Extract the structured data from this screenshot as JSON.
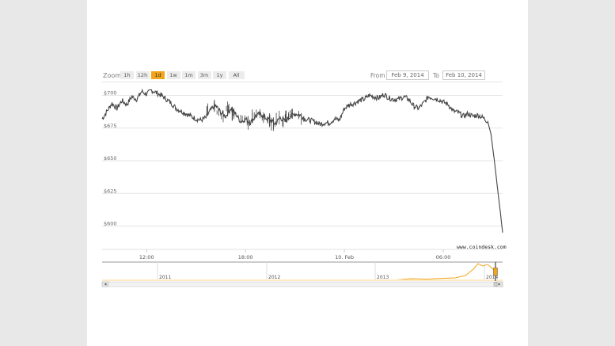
{
  "zoom": {
    "label": "Zoom",
    "buttons": [
      "1h",
      "12h",
      "1d",
      "1w",
      "1m",
      "3m",
      "1y",
      "All"
    ],
    "active": "1d",
    "active_color": "#f2a51a"
  },
  "range": {
    "from_label": "From",
    "from_value": "Feb 9, 2014",
    "to_label": "To",
    "to_value": "Feb 10, 2014"
  },
  "credit": "www.coindesk.com",
  "chart_data": {
    "type": "line",
    "title": "",
    "xlabel": "",
    "ylabel": "",
    "y_ticks": [
      "$700",
      "$675",
      "$650",
      "$625",
      "$600"
    ],
    "y_tick_values": [
      700,
      675,
      650,
      625,
      600
    ],
    "ylim": [
      590,
      710
    ],
    "x_ticks": [
      "12:00",
      "18:00",
      "10. Feb",
      "06:00"
    ],
    "x_tick_hours": [
      12,
      18,
      24,
      30
    ],
    "xlim_hours": [
      9.3,
      33.6
    ],
    "grid": true,
    "line_color": "#444444",
    "series": [
      {
        "x_hours": [
          9.3,
          9.6,
          9.9,
          10.2,
          10.5,
          10.8,
          11.1,
          11.4,
          11.7,
          12.0,
          12.3,
          12.6,
          12.9,
          13.2,
          13.5,
          13.8,
          14.1,
          14.4,
          14.7,
          15.0,
          15.3,
          15.6,
          15.9,
          16.2,
          16.5,
          16.8,
          17.1,
          17.4,
          17.7,
          18.0,
          18.3,
          18.6,
          18.9,
          19.2,
          19.5,
          19.8,
          20.1,
          20.4,
          20.7,
          21.0,
          21.3,
          21.6,
          21.9,
          22.2,
          22.5,
          22.8,
          23.1,
          23.4,
          23.7,
          24.0,
          24.3,
          24.6,
          24.9,
          25.2,
          25.5,
          25.8,
          26.1,
          26.4,
          26.7,
          27.0,
          27.3,
          27.6,
          27.9,
          28.2,
          28.5,
          28.8,
          29.1,
          29.4,
          29.7,
          30.0,
          30.3,
          30.6,
          30.9,
          31.2,
          31.5,
          31.8,
          32.1,
          32.4,
          32.7,
          32.9,
          33.1,
          33.3,
          33.45,
          33.6
        ],
        "values": [
          682,
          688,
          694,
          690,
          696,
          693,
          699,
          697,
          703,
          701,
          704,
          702,
          700,
          697,
          694,
          690,
          688,
          686,
          684,
          682,
          681,
          683,
          689,
          692,
          687,
          684,
          690,
          686,
          680,
          682,
          679,
          684,
          686,
          683,
          681,
          678,
          683,
          680,
          684,
          686,
          685,
          682,
          681,
          680,
          678,
          679,
          679,
          682,
          681,
          690,
          693,
          694,
          696,
          697,
          700,
          699,
          698,
          701,
          698,
          697,
          697,
          699,
          697,
          692,
          690,
          694,
          699,
          698,
          697,
          695,
          693,
          688,
          687,
          684,
          686,
          684,
          685,
          683,
          680,
          670,
          650,
          628,
          612,
          595
        ]
      }
    ],
    "navigator": {
      "labels": [
        "2011",
        "2012",
        "2013",
        "2014"
      ],
      "line_color": "#f2a51a"
    }
  }
}
